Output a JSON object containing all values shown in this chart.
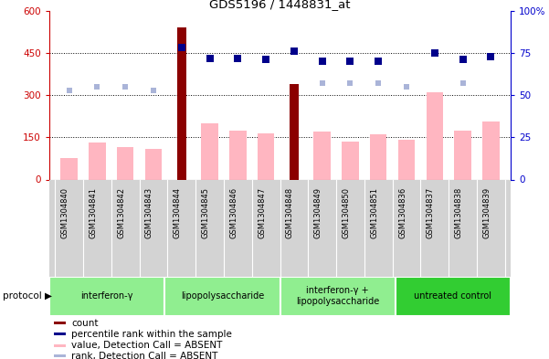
{
  "title": "GDS5196 / 1448831_at",
  "samples": [
    "GSM1304840",
    "GSM1304841",
    "GSM1304842",
    "GSM1304843",
    "GSM1304844",
    "GSM1304845",
    "GSM1304846",
    "GSM1304847",
    "GSM1304848",
    "GSM1304849",
    "GSM1304850",
    "GSM1304851",
    "GSM1304836",
    "GSM1304837",
    "GSM1304838",
    "GSM1304839"
  ],
  "count_values": [
    0,
    0,
    0,
    0,
    540,
    0,
    0,
    0,
    340,
    0,
    0,
    0,
    0,
    0,
    0,
    0
  ],
  "pink_values": [
    75,
    130,
    115,
    110,
    0,
    200,
    175,
    165,
    0,
    170,
    135,
    160,
    140,
    310,
    175,
    205
  ],
  "blue_dot_values": [
    null,
    null,
    null,
    null,
    78,
    72,
    72,
    71,
    76,
    70,
    70,
    70,
    null,
    75,
    71,
    73
  ],
  "lavender_dot_values": [
    53,
    55,
    55,
    53,
    null,
    null,
    null,
    null,
    null,
    57,
    57,
    57,
    55,
    null,
    57,
    73
  ],
  "protocols": [
    {
      "label": "interferon-γ",
      "start": 0,
      "end": 4
    },
    {
      "label": "lipopolysaccharide",
      "start": 4,
      "end": 8
    },
    {
      "label": "interferon-γ +\nlipopolysaccharide",
      "start": 8,
      "end": 12
    },
    {
      "label": "untreated control",
      "start": 12,
      "end": 16
    }
  ],
  "left_ylim": [
    0,
    600
  ],
  "right_ylim": [
    0,
    100
  ],
  "left_yticks": [
    0,
    150,
    300,
    450,
    600
  ],
  "right_yticks": [
    0,
    25,
    50,
    75,
    100
  ],
  "left_tick_color": "#cc0000",
  "right_tick_color": "#0000cc",
  "bar_color_dark": "#8b0000",
  "bar_color_pink": "#ffb6c1",
  "dot_color_blue": "#00008b",
  "dot_color_lavender": "#aab4d8",
  "protocol_green_light": "#90ee90",
  "protocol_green_dark": "#32cd32",
  "legend_items": [
    {
      "color": "#8b0000",
      "label": "count"
    },
    {
      "color": "#00008b",
      "label": "percentile rank within the sample"
    },
    {
      "color": "#ffb6c1",
      "label": "value, Detection Call = ABSENT"
    },
    {
      "color": "#aab4d8",
      "label": "rank, Detection Call = ABSENT"
    }
  ]
}
